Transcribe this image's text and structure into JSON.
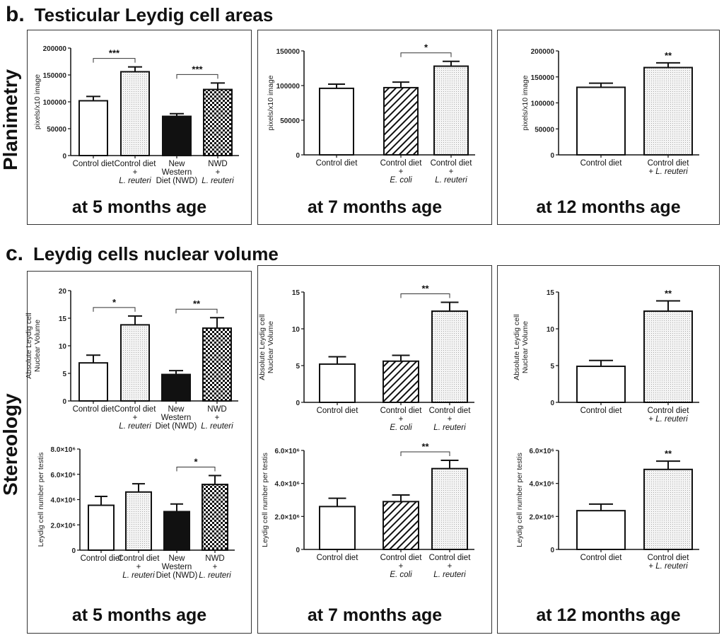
{
  "sections": {
    "b": {
      "letter": "b.",
      "title": "Testicular Leydig cell areas",
      "side": "Planimetry"
    },
    "c": {
      "letter": "c.",
      "title": "Leydig cells nuclear volume",
      "side": "Stereology"
    }
  },
  "ages": [
    "at 5 months age",
    "at 7 months age",
    "at 12 months age",
    "at 5 months age",
    "at 7 months age",
    "at 12 months age"
  ],
  "chart_data": [
    {
      "id": "area-5mo",
      "type": "bar",
      "ylabel": "pixels/x10 image",
      "ylim": [
        0,
        200000
      ],
      "ticks": [
        0,
        50000,
        100000,
        150000,
        200000
      ],
      "tick_labels": [
        "0",
        "50000",
        "100000",
        "150000",
        "200000"
      ],
      "categories": [
        [
          "Control diet"
        ],
        [
          "Control diet",
          "+",
          "L. reuteri"
        ],
        [
          "New",
          "Western",
          "Diet (NWD)"
        ],
        [
          "NWD",
          "+",
          "L. reuteri"
        ]
      ],
      "fills": [
        "white",
        "dots",
        "black",
        "checker"
      ],
      "values": [
        102000,
        156000,
        73000,
        123000
      ],
      "errors": [
        8000,
        9000,
        5000,
        12000
      ],
      "significance": [
        {
          "from": 0,
          "to": 1,
          "label": "***"
        },
        {
          "from": 2,
          "to": 3,
          "label": "***"
        }
      ]
    },
    {
      "id": "area-7mo",
      "type": "bar",
      "ylabel": "pixels/x10 image",
      "ylim": [
        0,
        150000
      ],
      "ticks": [
        0,
        50000,
        100000,
        150000
      ],
      "tick_labels": [
        "0",
        "50000",
        "100000",
        "150000"
      ],
      "categories": [
        [
          "Control diet"
        ],
        [
          "Control diet",
          "+",
          "E. coli"
        ],
        [
          "Control diet",
          "+",
          "L. reuteri"
        ]
      ],
      "fills": [
        "white",
        "hatch",
        "dots"
      ],
      "values": [
        96000,
        97000,
        128000
      ],
      "errors": [
        6000,
        8000,
        7000
      ],
      "significance": [
        {
          "from": 1,
          "to": 2,
          "label": "*"
        }
      ]
    },
    {
      "id": "area-12mo",
      "type": "bar",
      "ylabel": "pixels/x10 image",
      "ylim": [
        0,
        200000
      ],
      "ticks": [
        0,
        50000,
        100000,
        150000,
        200000
      ],
      "tick_labels": [
        "0",
        "50000",
        "100000",
        "150000",
        "200000"
      ],
      "categories": [
        [
          "Control diet"
        ],
        [
          "Control diet",
          "+ L. reuteri"
        ]
      ],
      "fills": [
        "white",
        "dots"
      ],
      "values": [
        130000,
        168000
      ],
      "errors": [
        8000,
        9000
      ],
      "significance": [
        {
          "from": 1,
          "to": 1,
          "label": "**"
        }
      ]
    },
    {
      "id": "nucvol-5mo",
      "type": "bar",
      "ylabel": "Absolute Leydig cell|Nuclear Volume",
      "ylim": [
        0,
        20
      ],
      "ticks": [
        0,
        5,
        10,
        15,
        20
      ],
      "tick_labels": [
        "0",
        "5",
        "10",
        "15",
        "20"
      ],
      "categories": [
        [
          "Control diet"
        ],
        [
          "Control diet",
          "+",
          "L. reuteri"
        ],
        [
          "New",
          "Western",
          "Diet (NWD)"
        ],
        [
          "NWD",
          "+",
          "L. reuteri"
        ]
      ],
      "fills": [
        "white",
        "dots",
        "black",
        "checker"
      ],
      "values": [
        6.9,
        13.8,
        4.8,
        13.2
      ],
      "errors": [
        1.4,
        1.6,
        0.7,
        1.9
      ],
      "significance": [
        {
          "from": 0,
          "to": 1,
          "label": "*"
        },
        {
          "from": 2,
          "to": 3,
          "label": "**"
        }
      ]
    },
    {
      "id": "cellnum-5mo",
      "type": "bar",
      "ylabel": "Leydig cell number per testis",
      "ylim": [
        0,
        8000000
      ],
      "ticks": [
        0,
        2000000,
        4000000,
        6000000,
        8000000
      ],
      "tick_labels": [
        "0",
        "2.0×10⁶",
        "4.0×10⁶",
        "6.0×10⁶",
        "8.0×10⁶"
      ],
      "categories": [
        [
          "Control diet"
        ],
        [
          "Control diet",
          "+",
          "L. reuteri"
        ],
        [
          "New",
          "Western",
          "Diet (NWD)"
        ],
        [
          "NWD",
          "+",
          "L. reuteri"
        ]
      ],
      "fills": [
        "white",
        "dots",
        "black",
        "checker"
      ],
      "values": [
        3550000,
        4600000,
        3050000,
        5200000
      ],
      "errors": [
        700000,
        650000,
        600000,
        700000
      ],
      "significance": [
        {
          "from": 2,
          "to": 3,
          "label": "*"
        }
      ]
    },
    {
      "id": "nucvol-7mo",
      "type": "bar",
      "ylabel": "Absolute Leydig cell|Nuclear Volume",
      "ylim": [
        0,
        15
      ],
      "ticks": [
        0,
        5,
        10,
        15
      ],
      "tick_labels": [
        "0",
        "5",
        "10",
        "15"
      ],
      "categories": [
        [
          "Control diet"
        ],
        [
          "Control diet",
          "+",
          "E. coli"
        ],
        [
          "Control diet",
          "+",
          "L. reuteri"
        ]
      ],
      "fills": [
        "white",
        "hatch",
        "dots"
      ],
      "values": [
        5.2,
        5.6,
        12.4
      ],
      "errors": [
        1.0,
        0.8,
        1.2
      ],
      "significance": [
        {
          "from": 1,
          "to": 2,
          "label": "**"
        }
      ]
    },
    {
      "id": "cellnum-7mo",
      "type": "bar",
      "ylabel": "Leydig cell number per testis",
      "ylim": [
        0,
        6000000
      ],
      "ticks": [
        0,
        2000000,
        4000000,
        6000000
      ],
      "tick_labels": [
        "0",
        "2.0×10⁶",
        "4.0×10⁶",
        "6.0×10⁶"
      ],
      "categories": [
        [
          "Control diet"
        ],
        [
          "Control diet",
          "+",
          "E. coli"
        ],
        [
          "Control diet",
          "+",
          "L. reuteri"
        ]
      ],
      "fills": [
        "white",
        "hatch",
        "dots"
      ],
      "values": [
        2600000,
        2900000,
        4900000
      ],
      "errors": [
        500000,
        400000,
        500000
      ],
      "significance": [
        {
          "from": 1,
          "to": 2,
          "label": "**"
        }
      ]
    },
    {
      "id": "nucvol-12mo",
      "type": "bar",
      "ylabel": "Absolute Leydig cell|Nuclear Volume",
      "ylim": [
        0,
        15
      ],
      "ticks": [
        0,
        5,
        10,
        15
      ],
      "tick_labels": [
        "0",
        "5",
        "10",
        "15"
      ],
      "categories": [
        [
          "Control diet"
        ],
        [
          "Control diet",
          "+ L. reuteri"
        ]
      ],
      "fills": [
        "white",
        "dots"
      ],
      "values": [
        4.9,
        12.4
      ],
      "errors": [
        0.8,
        1.4
      ],
      "significance": [
        {
          "from": 1,
          "to": 1,
          "label": "**"
        }
      ]
    },
    {
      "id": "cellnum-12mo",
      "type": "bar",
      "ylabel": "Leydig cell number per testis",
      "ylim": [
        0,
        6000000
      ],
      "ticks": [
        0,
        2000000,
        4000000,
        6000000
      ],
      "tick_labels": [
        "0",
        "2.0×10⁶",
        "4.0×10⁶",
        "6.0×10⁶"
      ],
      "categories": [
        [
          "Control diet"
        ],
        [
          "Control diet",
          "+ L. reuteri"
        ]
      ],
      "fills": [
        "white",
        "dots"
      ],
      "values": [
        2350000,
        4850000
      ],
      "errors": [
        400000,
        500000
      ],
      "significance": [
        {
          "from": 1,
          "to": 1,
          "label": "**"
        }
      ]
    }
  ]
}
